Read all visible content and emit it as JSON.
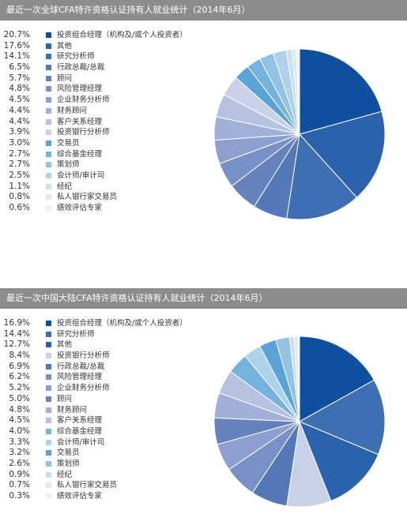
{
  "colors": [
    "#0f4f9f",
    "#2a62ad",
    "#3e6fb3",
    "#5478b8",
    "#6582bd",
    "#7890c6",
    "#8c9fcf",
    "#a0b0d8",
    "#b5c2e0",
    "#c8d1e8",
    "#5aa3d8",
    "#76b2de",
    "#92c2e4",
    "#afd2ec",
    "#c9e0f2",
    "#dbe9f6",
    "#e9f1f9"
  ],
  "chart_data": [
    {
      "type": "pie",
      "title": "最近一次全球CFA特许资格认证持有人就业统计（2014年6月）",
      "categories": [
        "投资组合经理（机构及/或个人投资者）",
        "其他",
        "研究分析师",
        "行政总裁/总裁",
        "顾问",
        "风险管理经理",
        "企业财务分析师",
        "财务顾问",
        "客户关系经理",
        "投资银行分析师",
        "交易员",
        "综合基金经理",
        "策划师",
        "会计师/审计司",
        "经纪",
        "私人银行家交易员",
        "绩效评估专家"
      ],
      "values": [
        20.7,
        17.6,
        14.1,
        6.5,
        5.7,
        4.8,
        4.5,
        4.4,
        4.4,
        3.9,
        3.0,
        2.7,
        2.7,
        2.5,
        1.1,
        0.8,
        0.6
      ],
      "labels": [
        "20.7%",
        "17.6%",
        "14.1%",
        "6.5%",
        "5.7%",
        "4.8%",
        "4.5%",
        "4.4%",
        "4.4%",
        "3.9%",
        "3.0%",
        "2.7%",
        "2.7%",
        "2.5%",
        "1.1%",
        "0.8%",
        "0.6%"
      ],
      "color_index": [
        0,
        1,
        2,
        3,
        4,
        5,
        6,
        7,
        8,
        9,
        10,
        11,
        12,
        13,
        14,
        15,
        16
      ],
      "legend": "left"
    },
    {
      "type": "pie",
      "title": "最近一次中国大陆CFA特许资格认证持有人就业统计（2014年6月）",
      "categories": [
        "投资组合经理（机构及/或个人投资者）",
        "研究分析师",
        "其他",
        "投资银行分析师",
        "行政总裁/总裁",
        "风险管理经理",
        "企业财务分析师",
        "顾问",
        "财务顾问",
        "客户关系经理",
        "综合基金经理",
        "会计师/审计司",
        "交易员",
        "策划师",
        "经纪",
        "私人银行家交易员",
        "绩效评估专家"
      ],
      "values": [
        16.9,
        14.4,
        12.7,
        8.4,
        6.9,
        6.2,
        5.2,
        5.0,
        4.8,
        4.5,
        4.0,
        3.3,
        3.2,
        2.6,
        0.9,
        0.7,
        0.3
      ],
      "labels": [
        "16.9%",
        "14.4%",
        "12.7%",
        "8.4%",
        "6.9%",
        "6.2%",
        "5.2%",
        "5.0%",
        "4.8%",
        "4.5%",
        "4.0%",
        "3.3%",
        "3.2%",
        "2.6%",
        "0.9%",
        "0.7%",
        "0.3%"
      ],
      "color_index": [
        0,
        2,
        1,
        9,
        3,
        5,
        6,
        4,
        7,
        8,
        11,
        13,
        10,
        12,
        14,
        15,
        16
      ],
      "legend": "left"
    }
  ]
}
